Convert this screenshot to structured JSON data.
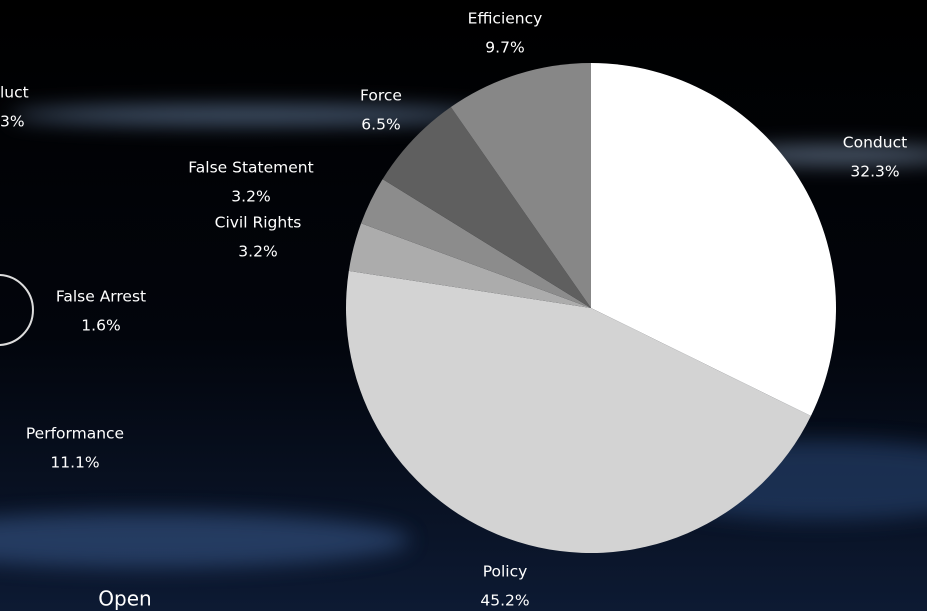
{
  "chart_data": {
    "type": "pie",
    "categories": [
      "Conduct",
      "Policy",
      "Civil Rights",
      "False Statement",
      "Force",
      "Efficiency"
    ],
    "values": [
      32.3,
      45.2,
      3.2,
      3.2,
      6.5,
      9.7
    ],
    "value_labels": [
      "32.3%",
      "45.2%",
      "3.2%",
      "3.2%",
      "6.5%",
      "9.7%"
    ],
    "colors": [
      "#ffffff",
      "#d3d3d3",
      "#acacac",
      "#8c8c8c",
      "#5f5f5f",
      "#878787"
    ]
  },
  "side_labels": [
    {
      "label": "luct",
      "value_label": "3%"
    },
    {
      "label": "False Arrest",
      "value_label": "1.6%"
    },
    {
      "label": "Performance",
      "value_label": "11.1%"
    }
  ],
  "button": "Open"
}
